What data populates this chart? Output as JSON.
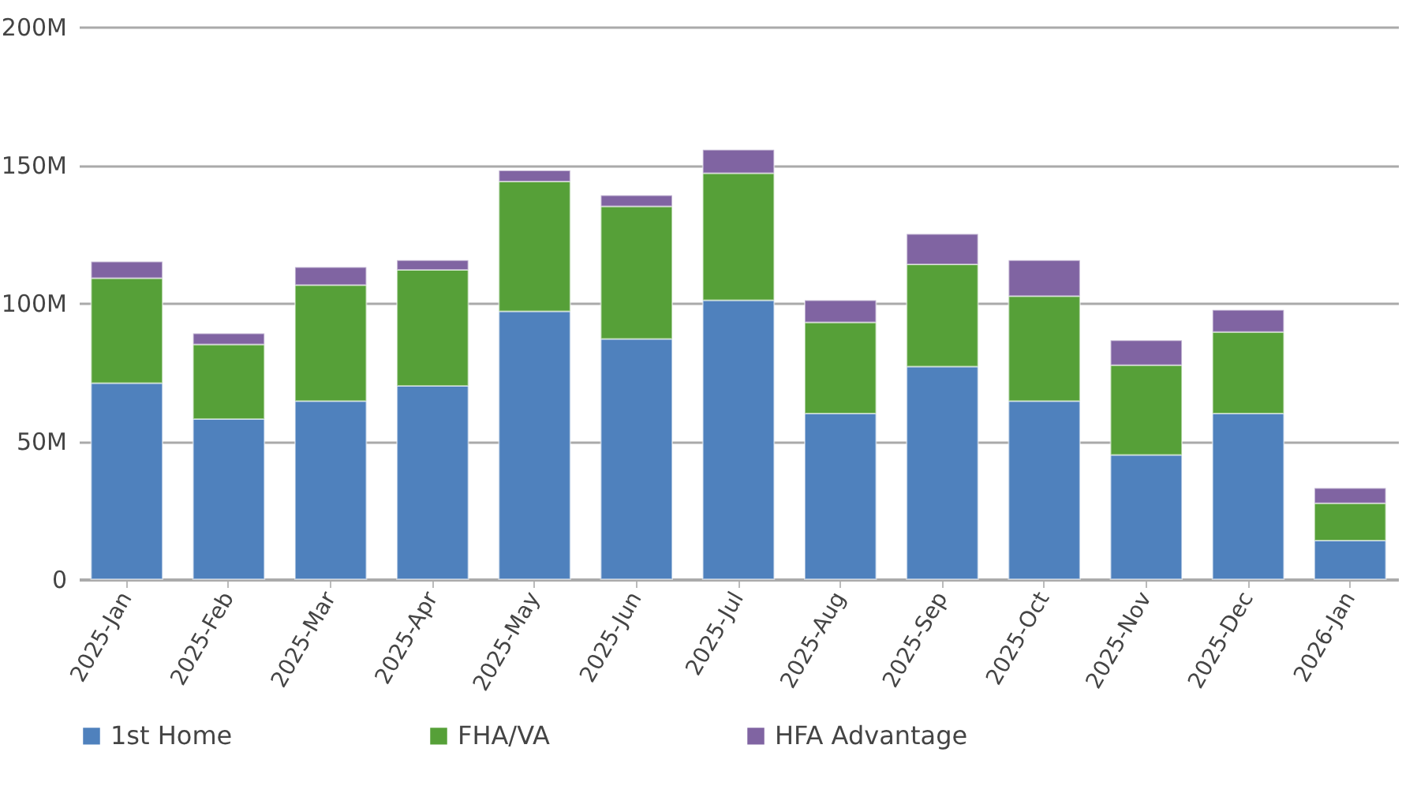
{
  "chart_data": {
    "type": "bar",
    "stacked": true,
    "categories": [
      "2025-Jan",
      "2025-Feb",
      "2025-Mar",
      "2025-Apr",
      "2025-May",
      "2025-Jun",
      "2025-Jul",
      "2025-Aug",
      "2025-Sep",
      "2025-Oct",
      "2025-Nov",
      "2025-Dec",
      "2026-Jan"
    ],
    "series": [
      {
        "name": "1st Home",
        "color": "#4f81bd",
        "values": [
          71,
          58,
          64.5,
          70,
          97,
          87,
          101,
          60,
          77,
          64.5,
          45,
          60,
          14
        ]
      },
      {
        "name": "FHA/VA",
        "color": "#56a038",
        "values": [
          38,
          27,
          42,
          42,
          47,
          48,
          46,
          33,
          37,
          38,
          32.5,
          29.5,
          13.5
        ]
      },
      {
        "name": "HFA Advantage",
        "color": "#8064a2",
        "values": [
          6,
          4,
          6.5,
          3.5,
          4,
          4,
          8.5,
          8,
          11,
          13,
          9,
          8,
          5.5
        ]
      }
    ],
    "ylim": [
      0,
      200
    ],
    "yticks": [
      0,
      {
        "value": 50,
        "label": "50M"
      },
      {
        "value": 100,
        "label": "100M"
      },
      {
        "value": 150,
        "label": "150M"
      },
      {
        "value": 200,
        "label": "200M"
      }
    ],
    "grid": "y",
    "legend": "bottom"
  }
}
